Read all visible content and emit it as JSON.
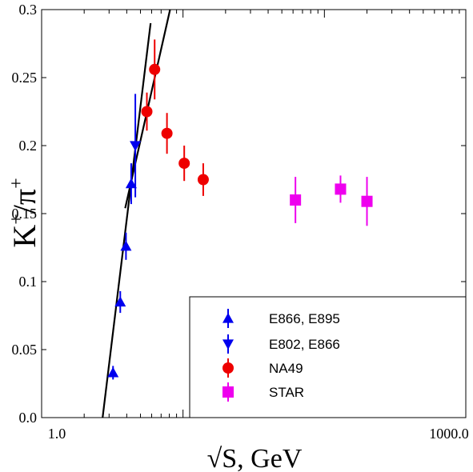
{
  "chart_data": {
    "type": "scatter",
    "title": "",
    "xlabel": "√S, GeV",
    "ylabel_main": "K",
    "ylabel_sup1": "+",
    "ylabel_mid": "/π",
    "ylabel_sup2": "+",
    "xscale": "log",
    "xlim": [
      1.0,
      1000.0
    ],
    "ylim": [
      0.0,
      0.3
    ],
    "grid": false,
    "legend_position": "bottom-right",
    "x_tick_labels": [
      "1.0",
      "1000.0"
    ],
    "y_tick_labels": [
      "0.0",
      "0.05",
      "0.1",
      "0.15",
      "0.2",
      "0.25",
      "0.3"
    ],
    "y_ticks": [
      0.0,
      0.05,
      0.1,
      0.15,
      0.2,
      0.25,
      0.3
    ],
    "series": [
      {
        "name": "E866, E895",
        "marker": "triangle-up",
        "color": "#0000ee",
        "points": [
          {
            "x": 3.2,
            "y": 0.033,
            "err": 0.005
          },
          {
            "x": 3.6,
            "y": 0.085,
            "err": 0.008
          },
          {
            "x": 3.95,
            "y": 0.126,
            "err": 0.01
          },
          {
            "x": 4.3,
            "y": 0.172,
            "err": 0.015
          }
        ]
      },
      {
        "name": "E802, E866",
        "marker": "triangle-down",
        "color": "#0000ee",
        "points": [
          {
            "x": 4.6,
            "y": 0.2,
            "err": 0.038
          }
        ]
      },
      {
        "name": "NA49",
        "marker": "circle",
        "color": "#ee0000",
        "points": [
          {
            "x": 5.55,
            "y": 0.225,
            "err": 0.014
          },
          {
            "x": 6.3,
            "y": 0.256,
            "err": 0.022
          },
          {
            "x": 7.7,
            "y": 0.209,
            "err": 0.015
          },
          {
            "x": 10.2,
            "y": 0.187,
            "err": 0.013
          },
          {
            "x": 13.9,
            "y": 0.175,
            "err": 0.012
          }
        ]
      },
      {
        "name": "STAR",
        "marker": "square",
        "color": "#ee00ee",
        "points": [
          {
            "x": 62.4,
            "y": 0.16,
            "err": 0.017
          },
          {
            "x": 130.0,
            "y": 0.168,
            "err": 0.01
          },
          {
            "x": 200.0,
            "y": 0.159,
            "err": 0.018
          }
        ]
      }
    ],
    "fit_lines": [
      {
        "x1": 2.7,
        "y1": 0.0,
        "x2": 5.9,
        "y2": 0.29
      },
      {
        "x1": 3.9,
        "y1": 0.154,
        "x2": 8.1,
        "y2": 0.3
      }
    ]
  }
}
